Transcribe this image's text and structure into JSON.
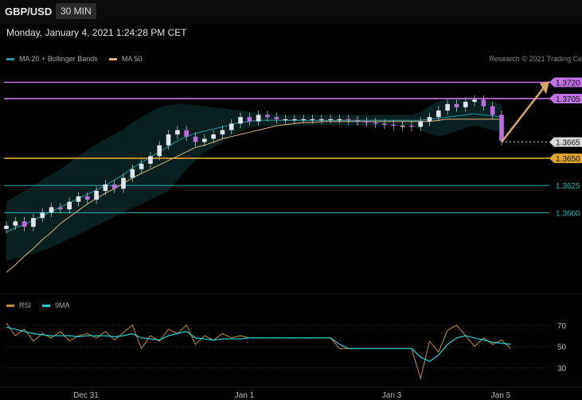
{
  "header": {
    "symbol": "GBP/USD",
    "timeframe": "30 MIN"
  },
  "datetime": "Monday, January 4, 2021 1:24:28 PM CET",
  "legend_main": [
    {
      "label": "MA 20 + Bollinger Bands",
      "color": "#1f9aa3"
    },
    {
      "label": "MA 50",
      "color": "#e0b27a"
    }
  ],
  "legend_rsi": [
    {
      "label": "RSI",
      "color": "#c9902f"
    },
    {
      "label": "9MA",
      "color": "#21d3e0"
    }
  ],
  "copyright": "Research © 2021 Trading Ce",
  "chart_data": {
    "type": "line",
    "title": "GBP/USD",
    "x_tick_labels": [
      "Dec 31",
      "Jan 1",
      "Jan 3",
      "Jan 5"
    ],
    "y_range": [
      1.353,
      1.3735
    ],
    "price": {
      "series": [
        {
          "name": "Close",
          "values": [
            1.3588,
            1.3592,
            1.3587,
            1.3595,
            1.36,
            1.3605,
            1.3603,
            1.361,
            1.3615,
            1.3612,
            1.362,
            1.3626,
            1.3622,
            1.3632,
            1.364,
            1.3645,
            1.3652,
            1.3662,
            1.3672,
            1.3676,
            1.367,
            1.3665,
            1.3668,
            1.3672,
            1.3676,
            1.3682,
            1.3688,
            1.3684,
            1.369,
            1.3688,
            1.3686,
            1.3686,
            1.3686,
            1.3686,
            1.3686,
            1.3686,
            1.3686,
            1.3686,
            1.3685,
            1.3684,
            1.3683,
            1.3682,
            1.3681,
            1.368,
            1.368,
            1.3679,
            1.3684,
            1.3688,
            1.3694,
            1.37,
            1.3697,
            1.3702,
            1.3704,
            1.3698,
            1.369,
            1.3666
          ]
        },
        {
          "name": "MA 50",
          "values": [
            1.3545,
            1.3552,
            1.356,
            1.3567,
            1.3575,
            1.3582,
            1.359,
            1.3596,
            1.3602,
            1.3608,
            1.3613,
            1.3618,
            1.3622,
            1.3627,
            1.3632,
            1.3636,
            1.364,
            1.3644,
            1.3648,
            1.3652,
            1.3656,
            1.366,
            1.3662,
            1.3665,
            1.3668,
            1.367,
            1.3672,
            1.3674,
            1.3676,
            1.3678,
            1.368,
            1.3681,
            1.3682,
            1.3683,
            1.3683,
            1.3684,
            1.3684,
            1.3684,
            1.3684,
            1.3684,
            1.3684,
            1.3684,
            1.3684,
            1.3684,
            1.3684,
            1.3684,
            1.3684,
            1.3684,
            1.3685,
            1.3686,
            1.3686,
            1.3686,
            1.3686,
            1.3686,
            1.3686,
            1.3686
          ]
        },
        {
          "name": "MA 20",
          "values": [
            1.3582,
            1.3586,
            1.3589,
            1.3593,
            1.3597,
            1.3601,
            1.3605,
            1.3609,
            1.3613,
            1.3617,
            1.3621,
            1.3625,
            1.363,
            1.3635,
            1.3641,
            1.3646,
            1.3651,
            1.3656,
            1.3661,
            1.3666,
            1.367,
            1.3673,
            1.3675,
            1.3677,
            1.3679,
            1.3681,
            1.3683,
            1.3684,
            1.3685,
            1.3685,
            1.3685,
            1.3685,
            1.3685,
            1.3685,
            1.3685,
            1.3685,
            1.3685,
            1.3685,
            1.3685,
            1.3685,
            1.3685,
            1.3685,
            1.3685,
            1.3685,
            1.3685,
            1.3685,
            1.3685,
            1.3686,
            1.3687,
            1.3688,
            1.3689,
            1.369,
            1.3691,
            1.369,
            1.3689,
            1.3688
          ]
        },
        {
          "name": "BB upper",
          "values": [
            1.361,
            1.3615,
            1.362,
            1.3625,
            1.363,
            1.3635,
            1.364,
            1.3646,
            1.3652,
            1.3658,
            1.3663,
            1.3668,
            1.3672,
            1.3677,
            1.3683,
            1.3688,
            1.3693,
            1.3697,
            1.3699,
            1.37,
            1.37,
            1.3699,
            1.3698,
            1.3697,
            1.3696,
            1.3695,
            1.3694,
            1.3693,
            1.3692,
            1.3691,
            1.369,
            1.369,
            1.369,
            1.369,
            1.369,
            1.369,
            1.369,
            1.369,
            1.369,
            1.369,
            1.369,
            1.369,
            1.369,
            1.369,
            1.369,
            1.369,
            1.3693,
            1.3698,
            1.3703,
            1.3705,
            1.3706,
            1.3706,
            1.3705,
            1.3704,
            1.3702,
            1.37
          ]
        },
        {
          "name": "BB lower",
          "values": [
            1.3555,
            1.3558,
            1.356,
            1.3562,
            1.3565,
            1.3568,
            1.3572,
            1.3576,
            1.358,
            1.3584,
            1.3588,
            1.3592,
            1.3596,
            1.36,
            1.3604,
            1.3608,
            1.3612,
            1.3616,
            1.362,
            1.363,
            1.364,
            1.3648,
            1.3655,
            1.366,
            1.3665,
            1.367,
            1.3675,
            1.3678,
            1.368,
            1.368,
            1.368,
            1.368,
            1.368,
            1.368,
            1.368,
            1.368,
            1.368,
            1.368,
            1.368,
            1.368,
            1.368,
            1.368,
            1.368,
            1.368,
            1.368,
            1.368,
            1.3676,
            1.3672,
            1.367,
            1.3672,
            1.3675,
            1.3678,
            1.368,
            1.3678,
            1.3676,
            1.3674
          ]
        }
      ]
    },
    "horizontal_levels": [
      {
        "value": 1.372,
        "label": "1.3720",
        "color": "#c271e6"
      },
      {
        "value": 1.3705,
        "label": "1.3705",
        "color": "#c271e6"
      },
      {
        "value": 1.3665,
        "label": "1.3665",
        "color": "#d9d9d9"
      },
      {
        "value": 1.365,
        "label": "1.3650",
        "color": "#e0a52a"
      },
      {
        "value": 1.3625,
        "label": "1.3625",
        "color": "#1fb6b6"
      },
      {
        "value": 1.36,
        "label": "1.3600",
        "color": "#1fb6b6"
      }
    ],
    "rsi": {
      "y_range": [
        17,
        78
      ],
      "y_tick_labels": [
        70,
        50,
        30
      ],
      "series": [
        {
          "name": "RSI",
          "values": [
            72,
            60,
            66,
            55,
            62,
            58,
            64,
            55,
            60,
            62,
            58,
            64,
            56,
            63,
            70,
            48,
            60,
            55,
            66,
            62,
            70,
            52,
            60,
            56,
            62,
            58,
            60,
            58,
            58,
            58,
            58,
            58,
            58,
            58,
            58,
            58,
            58,
            48,
            48,
            48,
            48,
            48,
            48,
            48,
            48,
            48,
            20,
            55,
            45,
            65,
            70,
            60,
            50,
            58,
            52,
            56,
            48
          ]
        },
        {
          "name": "9MA",
          "values": [
            68,
            66,
            64,
            62,
            61,
            60,
            60,
            60,
            59,
            60,
            60,
            60,
            59,
            60,
            62,
            58,
            57,
            56,
            60,
            62,
            64,
            58,
            57,
            56,
            57,
            57,
            57,
            58,
            58,
            58,
            58,
            58,
            58,
            58,
            58,
            58,
            58,
            52,
            48,
            48,
            48,
            48,
            48,
            48,
            48,
            48,
            40,
            36,
            42,
            52,
            58,
            60,
            58,
            56,
            54,
            53,
            52
          ]
        }
      ]
    }
  }
}
